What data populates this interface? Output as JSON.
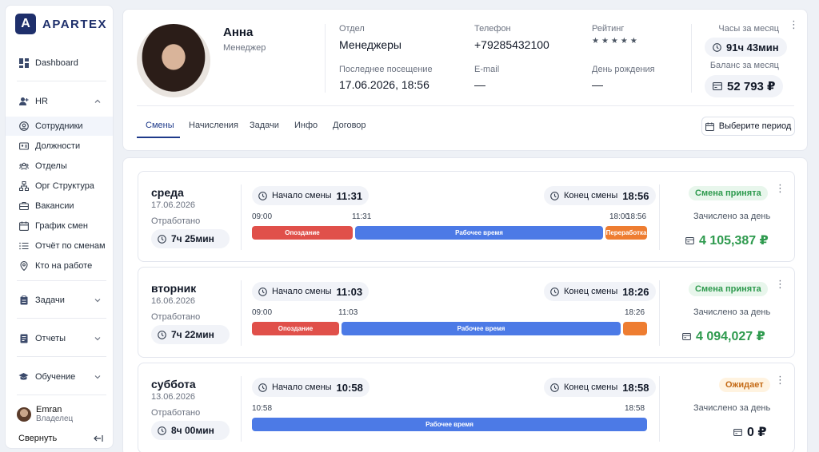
{
  "brand": {
    "name": "APARTEX"
  },
  "sidebar": {
    "dashboard": "Dashboard",
    "hr": "HR",
    "hr_items": [
      "Сотрудники",
      "Должности",
      "Отделы",
      "Орг Структура",
      "Вакансии",
      "График смен",
      "Отчёт по сменам",
      "Кто на работе"
    ],
    "tasks": "Задачи",
    "reports": "Отчеты",
    "training": "Обучение",
    "user": {
      "name": "Emran",
      "role": "Владелец"
    },
    "collapse": "Свернуть"
  },
  "profile": {
    "name": "Анна",
    "role": "Менеджер",
    "department_label": "Отдел",
    "department": "Менеджеры",
    "phone_label": "Телефон",
    "phone": "+79285432100",
    "rating_label": "Рейтинг",
    "rating_stars": "★★★★★",
    "last_visit_label": "Последнее посещение",
    "last_visit": "17.06.2026, 18:56",
    "email_label": "E-mail",
    "email": "—",
    "birthday_label": "День рождения",
    "birthday": "—",
    "hours_label": "Часы за месяц",
    "hours": "91ч 43мин",
    "balance_label": "Баланс за месяц",
    "balance": "52 793 ₽"
  },
  "tabs": [
    "Смены",
    "Начисления",
    "Задачи",
    "Инфо",
    "Договор"
  ],
  "period_button": "Выберите период",
  "shift_labels": {
    "worked": "Отработано",
    "start": "Начало смены",
    "end": "Конец смены",
    "credited": "Зачислено за день"
  },
  "shifts": [
    {
      "day": "среда",
      "date": "17.06.2026",
      "worked": "7ч 25мин",
      "start": "11:31",
      "end": "18:56",
      "marks": [
        "09:00",
        "11:31",
        "18:00",
        "18:56"
      ],
      "segments": [
        "Опоздание",
        "Рабочее время",
        "Переработка"
      ],
      "status": "Смена принята",
      "amount": "4 105,387 ₽"
    },
    {
      "day": "вторник",
      "date": "16.06.2026",
      "worked": "7ч 22мин",
      "start": "11:03",
      "end": "18:26",
      "marks": [
        "09:00",
        "11:03",
        "18:26"
      ],
      "segments": [
        "Опоздание",
        "Рабочее время",
        ""
      ],
      "status": "Смена принята",
      "amount": "4 094,027 ₽"
    },
    {
      "day": "суббота",
      "date": "13.06.2026",
      "worked": "8ч 00мин",
      "start": "10:58",
      "end": "18:58",
      "marks": [
        "10:58",
        "18:58"
      ],
      "segments": [
        "Рабочее время"
      ],
      "status": "Ожидает",
      "amount": "0 ₽"
    }
  ],
  "colors": {
    "accent": "#1e3a8a",
    "late": "#e0504a",
    "work": "#4c7ae6",
    "overtime": "#ee7d31",
    "ok": "#2e9a4e",
    "pending": "#c46a15"
  }
}
